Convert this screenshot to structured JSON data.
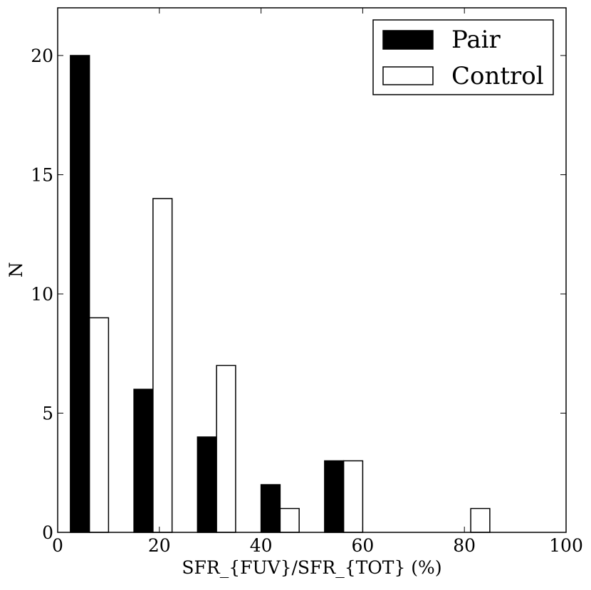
{
  "chart_data": {
    "type": "bar",
    "title": "",
    "xlabel": "SFR_{FUV}/SFR_{TOT} (%)",
    "ylabel": "N",
    "xlim": [
      0,
      100
    ],
    "ylim": [
      0,
      22
    ],
    "xticks": [
      0,
      20,
      40,
      60,
      80,
      100
    ],
    "yticks": [
      0,
      5,
      10,
      15,
      20
    ],
    "grid": false,
    "legend": "top-right",
    "bin_edges": [
      2.5,
      15,
      27.5,
      40,
      52.5,
      65,
      77.5,
      90
    ],
    "series": [
      {
        "name": "Pair",
        "fill": "#000000",
        "bin_starts": [
          2.5,
          15,
          27.5,
          40,
          52.5,
          65,
          77.5,
          90
        ],
        "bin_ends": [
          6.25,
          18.75,
          31.25,
          43.75,
          56.25,
          68.75,
          81.25,
          93.75
        ],
        "values": [
          20,
          6,
          4,
          2,
          3,
          0,
          0,
          0
        ]
      },
      {
        "name": "Control",
        "fill": "#ffffff",
        "bin_starts": [
          6.25,
          18.75,
          31.25,
          43.75,
          56.25,
          68.75,
          81.25,
          93.75
        ],
        "bin_ends": [
          10,
          22.5,
          35,
          47.5,
          60,
          72.5,
          85,
          97.5
        ],
        "values": [
          9,
          14,
          7,
          1,
          3,
          0,
          1,
          0
        ]
      }
    ]
  }
}
